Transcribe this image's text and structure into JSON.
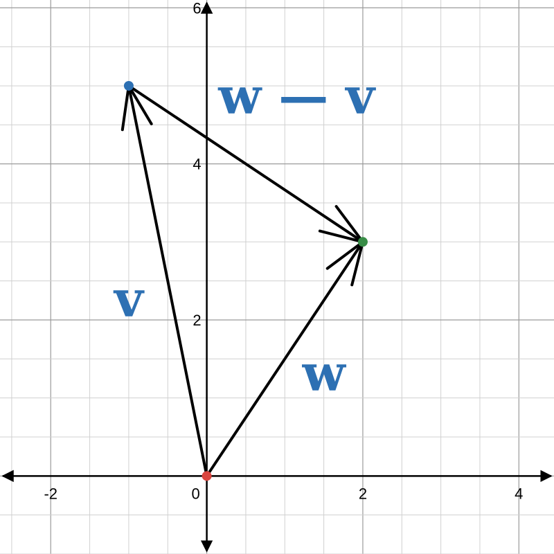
{
  "chart_data": {
    "type": "vector-diagram",
    "xlim": [
      -2.65,
      4.45
    ],
    "ylim": [
      -1,
      6.1
    ],
    "grid": true,
    "minor_grid_step": 0.5,
    "major_grid_step": 2,
    "x_tick_labels": [
      {
        "value": -2,
        "label": "-2"
      },
      {
        "value": 0,
        "label": "0"
      },
      {
        "value": 2,
        "label": "2"
      },
      {
        "value": 4,
        "label": "4"
      }
    ],
    "y_tick_labels": [
      {
        "value": 2,
        "label": "2"
      },
      {
        "value": 4,
        "label": "4"
      },
      {
        "value": 6,
        "label": "6"
      }
    ],
    "points": [
      {
        "name": "origin",
        "x": 0,
        "y": 0,
        "color": "#d9453f"
      },
      {
        "name": "v-tip",
        "x": -1,
        "y": 5,
        "color": "#2d70b3"
      },
      {
        "name": "w-tip",
        "x": 2,
        "y": 3,
        "color": "#388c46"
      }
    ],
    "vectors": [
      {
        "name": "v",
        "from": [
          0,
          0
        ],
        "to": [
          -1,
          5
        ]
      },
      {
        "name": "w",
        "from": [
          0,
          0
        ],
        "to": [
          2,
          3
        ]
      },
      {
        "name": "w-minus-v",
        "from": [
          -1,
          5
        ],
        "to": [
          2,
          3
        ]
      }
    ],
    "labels": [
      {
        "text": "v",
        "x": -1,
        "y": 2.05
      },
      {
        "text": "w",
        "x": 1.5,
        "y": 1.1
      },
      {
        "text": "w  —  v",
        "x": 1.15,
        "y": 4.65
      }
    ],
    "label_color": "#2d70b3",
    "vector_color": "#000000"
  }
}
